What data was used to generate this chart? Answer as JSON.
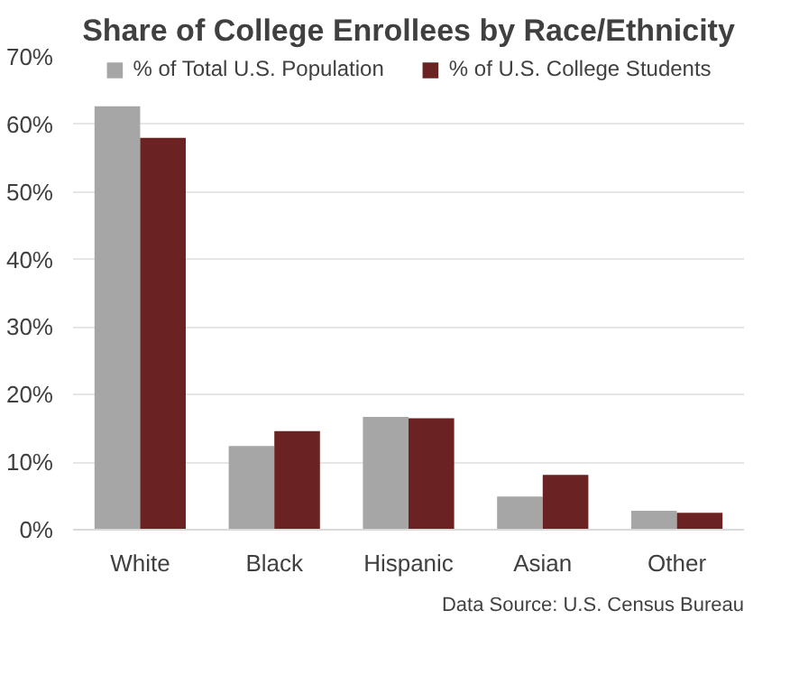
{
  "chart_data": {
    "type": "bar",
    "title": "Share of College Enrollees by Race/Ethnicity",
    "categories": [
      "White",
      "Black",
      "Hispanic",
      "Asian",
      "Other"
    ],
    "series": [
      {
        "name": "% of Total U.S. Population",
        "color": "#a6a6a6",
        "values": [
          62.7,
          12.4,
          16.7,
          4.9,
          2.8
        ]
      },
      {
        "name": "% of U.S. College Students",
        "color": "#6b2222",
        "values": [
          58.0,
          14.6,
          16.5,
          8.1,
          2.5
        ]
      }
    ],
    "ylim": [
      0,
      70
    ],
    "yticks": [
      {
        "value": 0,
        "label": "0%"
      },
      {
        "value": 10,
        "label": "10%"
      },
      {
        "value": 20,
        "label": "20%"
      },
      {
        "value": 30,
        "label": "30%"
      },
      {
        "value": 40,
        "label": "40%"
      },
      {
        "value": 50,
        "label": "50%"
      },
      {
        "value": 60,
        "label": "60%"
      },
      {
        "value": 70,
        "label": "70%"
      }
    ],
    "grid": "y",
    "legend": "top",
    "annotations": [
      "Data Source: U.S. Census Bureau"
    ]
  }
}
